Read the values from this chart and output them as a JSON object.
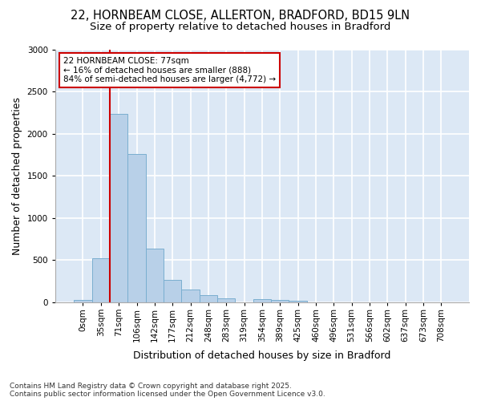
{
  "title_line1": "22, HORNBEAM CLOSE, ALLERTON, BRADFORD, BD15 9LN",
  "title_line2": "Size of property relative to detached houses in Bradford",
  "xlabel": "Distribution of detached houses by size in Bradford",
  "ylabel": "Number of detached properties",
  "categories": [
    "0sqm",
    "35sqm",
    "71sqm",
    "106sqm",
    "142sqm",
    "177sqm",
    "212sqm",
    "248sqm",
    "283sqm",
    "319sqm",
    "354sqm",
    "389sqm",
    "425sqm",
    "460sqm",
    "496sqm",
    "531sqm",
    "566sqm",
    "602sqm",
    "637sqm",
    "673sqm",
    "708sqm"
  ],
  "bar_heights": [
    25,
    520,
    2230,
    1760,
    640,
    260,
    150,
    80,
    50,
    0,
    35,
    30,
    20,
    0,
    0,
    0,
    0,
    0,
    0,
    0,
    0
  ],
  "bar_color": "#b8d0e8",
  "bar_edge_color": "#7aaed0",
  "ylim": [
    0,
    3000
  ],
  "yticks": [
    0,
    500,
    1000,
    1500,
    2000,
    2500,
    3000
  ],
  "annotation_text": "22 HORNBEAM CLOSE: 77sqm\n← 16% of detached houses are smaller (888)\n84% of semi-detached houses are larger (4,772) →",
  "vline_x_idx": 2,
  "annotation_box_color": "#ffffff",
  "annotation_box_edge": "#cc0000",
  "vline_color": "#cc0000",
  "plot_bg_color": "#dce8f5",
  "fig_bg_color": "#ffffff",
  "grid_color": "#ffffff",
  "footer_line1": "Contains HM Land Registry data © Crown copyright and database right 2025.",
  "footer_line2": "Contains public sector information licensed under the Open Government Licence v3.0.",
  "title_fontsize": 10.5,
  "subtitle_fontsize": 9.5,
  "axis_label_fontsize": 9,
  "tick_fontsize": 7.5,
  "annotation_fontsize": 7.5,
  "footer_fontsize": 6.5
}
